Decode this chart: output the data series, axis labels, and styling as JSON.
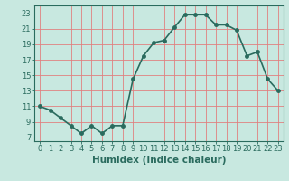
{
  "x": [
    0,
    1,
    2,
    3,
    4,
    5,
    6,
    7,
    8,
    9,
    10,
    11,
    12,
    13,
    14,
    15,
    16,
    17,
    18,
    19,
    20,
    21,
    22,
    23
  ],
  "y": [
    11,
    10.5,
    9.5,
    8.5,
    7.5,
    8.5,
    7.5,
    8.5,
    8.5,
    14.5,
    17.5,
    19.2,
    19.5,
    21.2,
    22.8,
    22.8,
    22.8,
    21.5,
    21.5,
    20.8,
    17.5,
    18.0,
    14.5,
    13.0
  ],
  "line_color": "#2a6b5e",
  "marker": "o",
  "marker_size": 2.5,
  "linewidth": 1.2,
  "bg_color": "#c8e8e0",
  "grid_color": "#e08080",
  "xlabel": "Humidex (Indice chaleur)",
  "xlim": [
    -0.5,
    23.5
  ],
  "ylim": [
    6.5,
    24.0
  ],
  "yticks": [
    7,
    9,
    11,
    13,
    15,
    17,
    19,
    21,
    23
  ],
  "xticks": [
    0,
    1,
    2,
    3,
    4,
    5,
    6,
    7,
    8,
    9,
    10,
    11,
    12,
    13,
    14,
    15,
    16,
    17,
    18,
    19,
    20,
    21,
    22,
    23
  ],
  "tick_label_fontsize": 6,
  "xlabel_fontsize": 7.5,
  "tick_color": "#2a6b5e",
  "axis_color": "#2a6b5e",
  "spine_color": "#2a6b5e"
}
